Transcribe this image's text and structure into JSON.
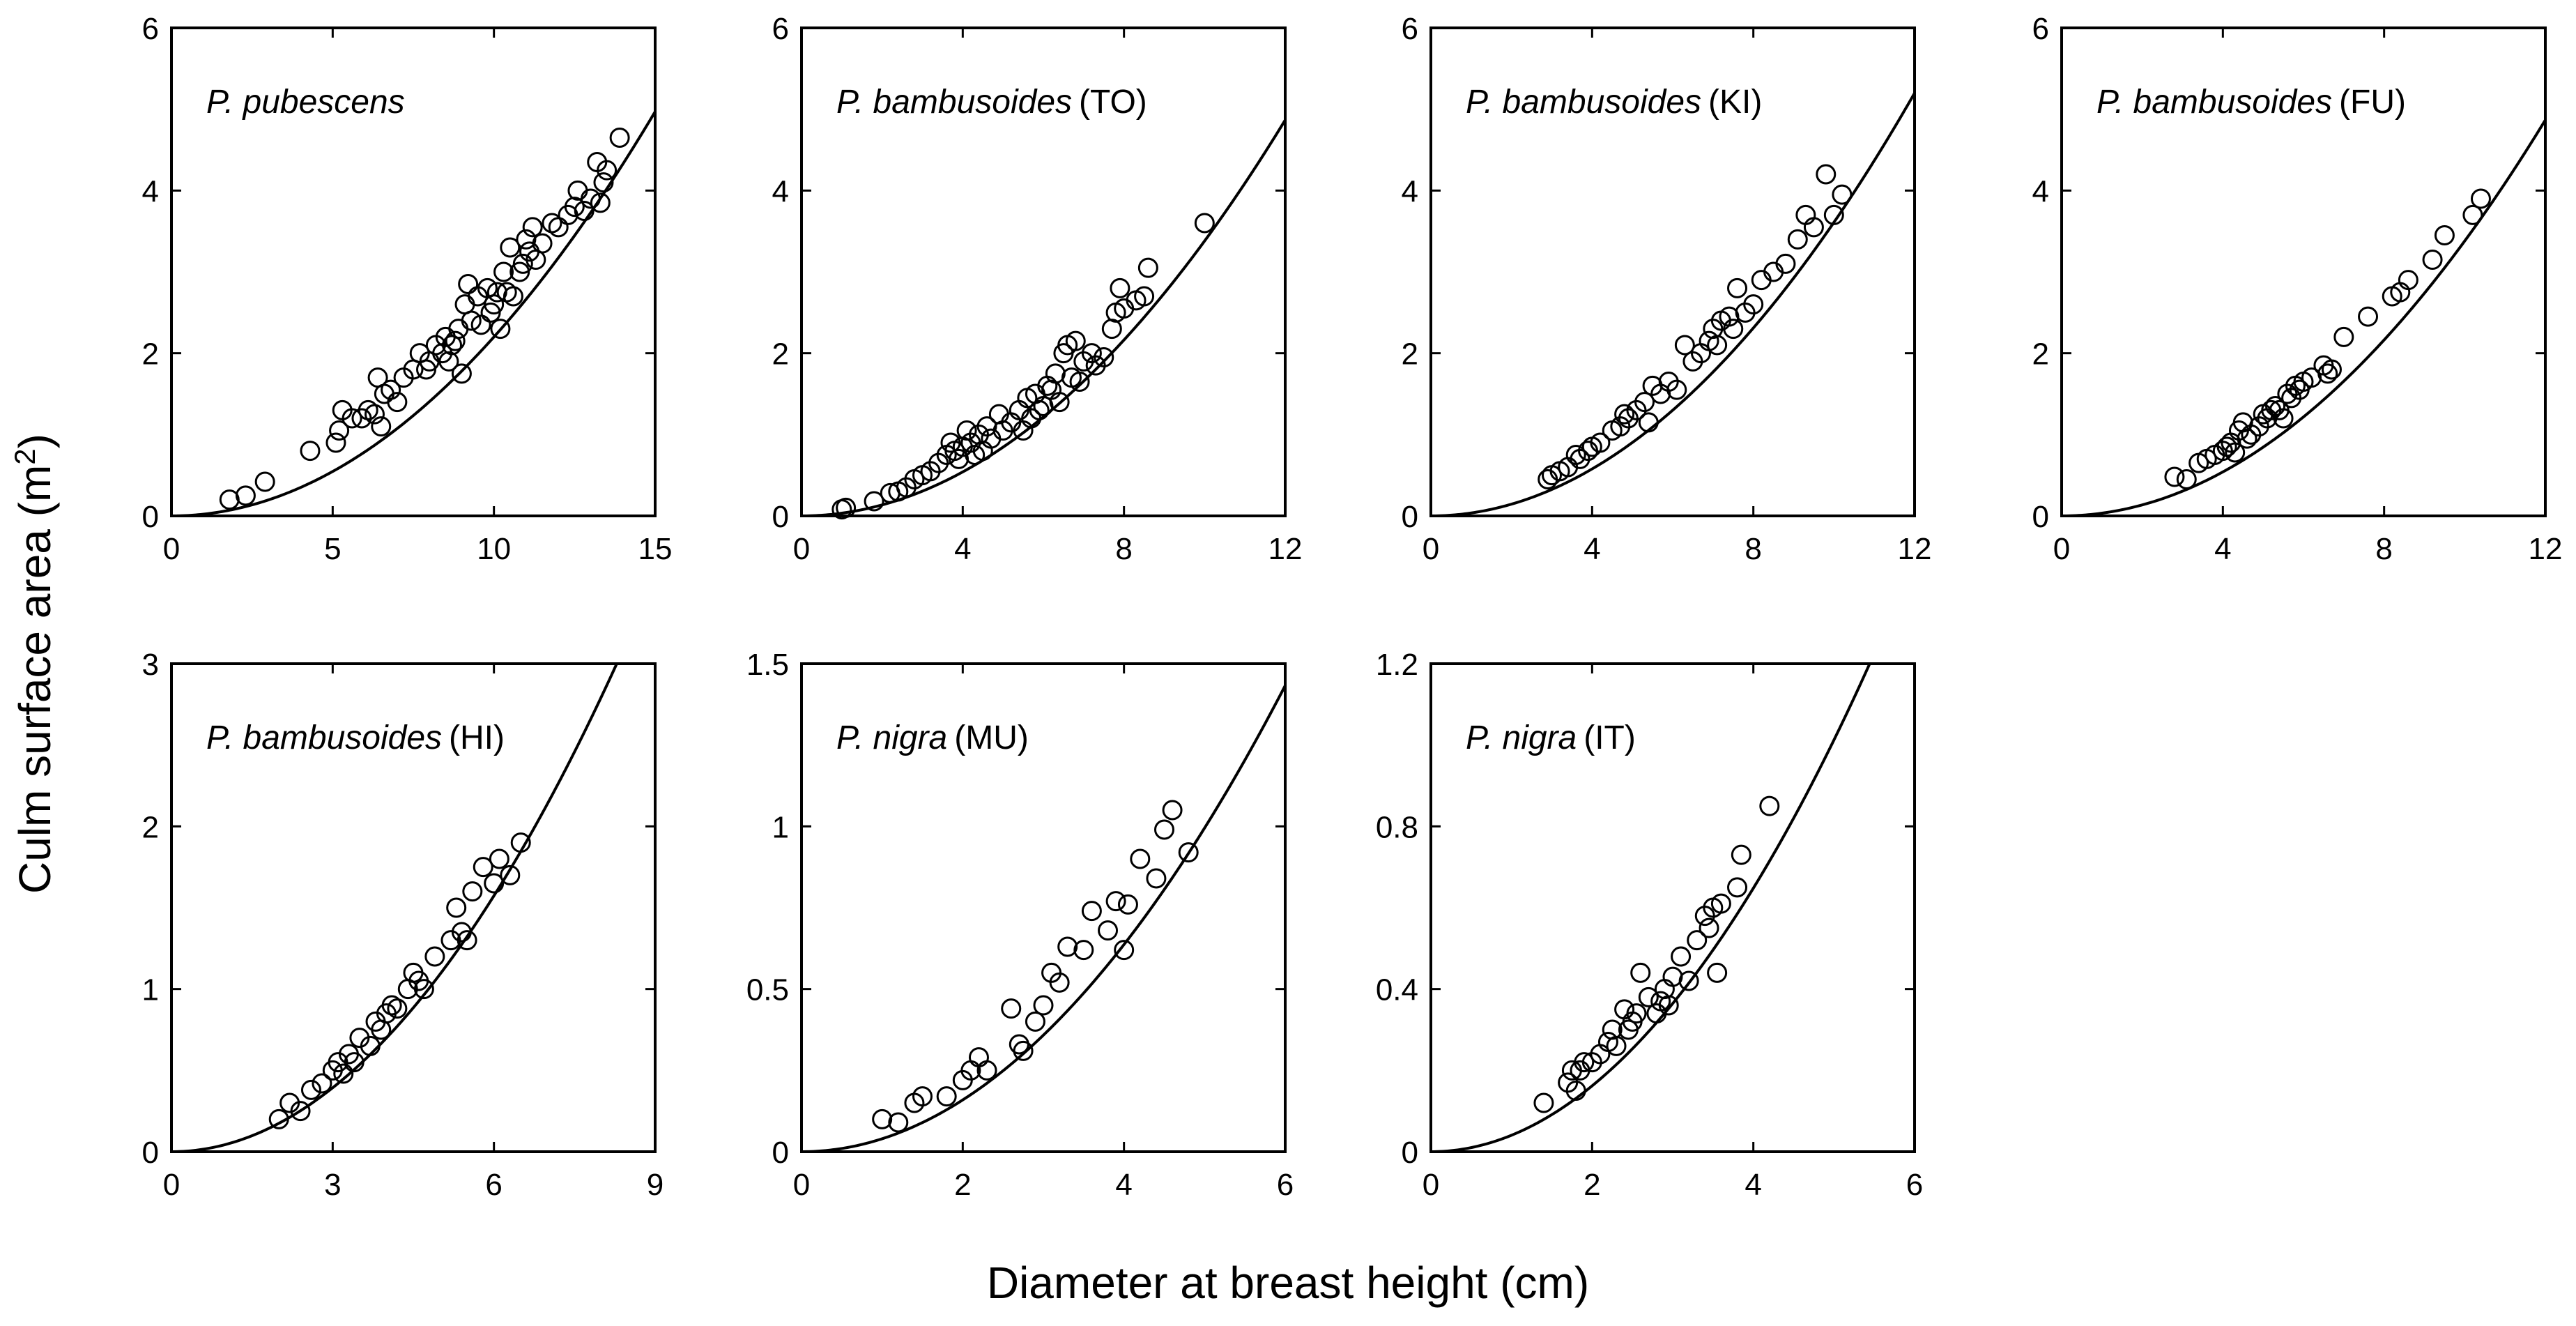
{
  "figure": {
    "ylabel": "Culm surface area (m",
    "ylabel_sup": "2",
    "ylabel_end": ")",
    "xlabel": "Diameter at breast height (cm)"
  },
  "chart_data": [
    {
      "type": "scatter",
      "title_italic": "P. pubescens",
      "title_site": "",
      "xlim": [
        0,
        15
      ],
      "ylim": [
        0,
        6
      ],
      "xticks": [
        0,
        5,
        10,
        15
      ],
      "yticks": [
        0,
        2,
        4,
        6
      ],
      "xticklabels": [
        "0",
        "5",
        "10",
        "15"
      ],
      "yticklabels": [
        "0",
        "2",
        "4",
        "6"
      ],
      "fit": {
        "a": 0.0215,
        "b": 2.01
      },
      "points": [
        [
          1.8,
          0.2
        ],
        [
          2.3,
          0.25
        ],
        [
          2.9,
          0.42
        ],
        [
          4.3,
          0.8
        ],
        [
          5.1,
          0.9
        ],
        [
          5.2,
          1.05
        ],
        [
          5.3,
          1.3
        ],
        [
          5.6,
          1.2
        ],
        [
          5.9,
          1.2
        ],
        [
          6.1,
          1.3
        ],
        [
          6.3,
          1.25
        ],
        [
          6.4,
          1.7
        ],
        [
          6.5,
          1.1
        ],
        [
          6.6,
          1.5
        ],
        [
          6.8,
          1.55
        ],
        [
          7.0,
          1.4
        ],
        [
          7.2,
          1.7
        ],
        [
          7.5,
          1.8
        ],
        [
          7.7,
          2.0
        ],
        [
          7.9,
          1.8
        ],
        [
          8.0,
          1.9
        ],
        [
          8.2,
          2.1
        ],
        [
          8.4,
          2.0
        ],
        [
          8.5,
          2.2
        ],
        [
          8.6,
          1.9
        ],
        [
          8.7,
          2.1
        ],
        [
          8.8,
          2.15
        ],
        [
          8.9,
          2.3
        ],
        [
          9.0,
          1.75
        ],
        [
          9.1,
          2.6
        ],
        [
          9.2,
          2.85
        ],
        [
          9.3,
          2.4
        ],
        [
          9.5,
          2.7
        ],
        [
          9.6,
          2.35
        ],
        [
          9.8,
          2.8
        ],
        [
          9.9,
          2.5
        ],
        [
          10.0,
          2.6
        ],
        [
          10.1,
          2.75
        ],
        [
          10.2,
          2.3
        ],
        [
          10.3,
          3.0
        ],
        [
          10.4,
          2.75
        ],
        [
          10.5,
          3.3
        ],
        [
          10.6,
          2.7
        ],
        [
          10.8,
          3.0
        ],
        [
          10.9,
          3.1
        ],
        [
          11.0,
          3.4
        ],
        [
          11.1,
          3.25
        ],
        [
          11.2,
          3.55
        ],
        [
          11.3,
          3.15
        ],
        [
          11.5,
          3.35
        ],
        [
          11.8,
          3.6
        ],
        [
          12.0,
          3.55
        ],
        [
          12.3,
          3.7
        ],
        [
          12.5,
          3.8
        ],
        [
          12.6,
          4.0
        ],
        [
          12.8,
          3.75
        ],
        [
          13.0,
          3.9
        ],
        [
          13.2,
          4.35
        ],
        [
          13.3,
          3.85
        ],
        [
          13.4,
          4.1
        ],
        [
          13.5,
          4.25
        ],
        [
          13.9,
          4.65
        ]
      ]
    },
    {
      "type": "scatter",
      "title_italic": "P. bambusoides",
      "title_site": "(TO)",
      "xlim": [
        0,
        12
      ],
      "ylim": [
        0,
        6
      ],
      "xticks": [
        0,
        4,
        8,
        12
      ],
      "yticks": [
        0,
        2,
        4,
        6
      ],
      "xticklabels": [
        "0",
        "4",
        "8",
        "12"
      ],
      "yticklabels": [
        "0",
        "2",
        "4",
        "6"
      ],
      "fit": {
        "a": 0.0338,
        "b": 2.0
      },
      "points": [
        [
          1.0,
          0.08
        ],
        [
          1.1,
          0.1
        ],
        [
          1.8,
          0.18
        ],
        [
          2.2,
          0.28
        ],
        [
          2.4,
          0.3
        ],
        [
          2.6,
          0.35
        ],
        [
          2.8,
          0.45
        ],
        [
          3.0,
          0.5
        ],
        [
          3.2,
          0.55
        ],
        [
          3.4,
          0.65
        ],
        [
          3.6,
          0.75
        ],
        [
          3.7,
          0.9
        ],
        [
          3.8,
          0.8
        ],
        [
          3.9,
          0.7
        ],
        [
          4.0,
          0.85
        ],
        [
          4.1,
          1.05
        ],
        [
          4.2,
          0.9
        ],
        [
          4.3,
          0.75
        ],
        [
          4.4,
          1.0
        ],
        [
          4.5,
          0.8
        ],
        [
          4.6,
          1.1
        ],
        [
          4.7,
          0.95
        ],
        [
          4.9,
          1.25
        ],
        [
          5.0,
          1.05
        ],
        [
          5.2,
          1.15
        ],
        [
          5.4,
          1.3
        ],
        [
          5.5,
          1.05
        ],
        [
          5.6,
          1.45
        ],
        [
          5.7,
          1.2
        ],
        [
          5.8,
          1.5
        ],
        [
          5.9,
          1.3
        ],
        [
          6.0,
          1.35
        ],
        [
          6.1,
          1.6
        ],
        [
          6.2,
          1.55
        ],
        [
          6.3,
          1.75
        ],
        [
          6.4,
          1.4
        ],
        [
          6.5,
          2.0
        ],
        [
          6.6,
          2.1
        ],
        [
          6.7,
          1.7
        ],
        [
          6.8,
          2.15
        ],
        [
          6.9,
          1.65
        ],
        [
          7.0,
          1.9
        ],
        [
          7.2,
          2.0
        ],
        [
          7.3,
          1.85
        ],
        [
          7.5,
          1.95
        ],
        [
          7.7,
          2.3
        ],
        [
          7.8,
          2.5
        ],
        [
          7.9,
          2.8
        ],
        [
          8.0,
          2.55
        ],
        [
          8.3,
          2.65
        ],
        [
          8.5,
          2.7
        ],
        [
          8.6,
          3.05
        ],
        [
          10.0,
          3.6
        ]
      ]
    },
    {
      "type": "scatter",
      "title_italic": "P. bambusoides",
      "title_site": "(KI)",
      "xlim": [
        0,
        12
      ],
      "ylim": [
        0,
        6
      ],
      "xticks": [
        0,
        4,
        8,
        12
      ],
      "yticks": [
        0,
        2,
        4,
        6
      ],
      "xticklabels": [
        "0",
        "4",
        "8",
        "12"
      ],
      "yticklabels": [
        "0",
        "2",
        "4",
        "6"
      ],
      "fit": {
        "a": 0.0361,
        "b": 2.0
      },
      "points": [
        [
          2.9,
          0.45
        ],
        [
          3.0,
          0.5
        ],
        [
          3.2,
          0.55
        ],
        [
          3.4,
          0.6
        ],
        [
          3.6,
          0.75
        ],
        [
          3.7,
          0.7
        ],
        [
          3.9,
          0.8
        ],
        [
          4.0,
          0.85
        ],
        [
          4.2,
          0.9
        ],
        [
          4.5,
          1.05
        ],
        [
          4.7,
          1.1
        ],
        [
          4.8,
          1.25
        ],
        [
          4.9,
          1.2
        ],
        [
          5.1,
          1.3
        ],
        [
          5.3,
          1.4
        ],
        [
          5.4,
          1.15
        ],
        [
          5.5,
          1.6
        ],
        [
          5.7,
          1.5
        ],
        [
          5.9,
          1.65
        ],
        [
          6.1,
          1.55
        ],
        [
          6.3,
          2.1
        ],
        [
          6.5,
          1.9
        ],
        [
          6.7,
          2.0
        ],
        [
          6.9,
          2.15
        ],
        [
          7.0,
          2.3
        ],
        [
          7.1,
          2.1
        ],
        [
          7.2,
          2.4
        ],
        [
          7.4,
          2.45
        ],
        [
          7.5,
          2.3
        ],
        [
          7.6,
          2.8
        ],
        [
          7.8,
          2.5
        ],
        [
          8.0,
          2.6
        ],
        [
          8.2,
          2.9
        ],
        [
          8.5,
          3.0
        ],
        [
          8.8,
          3.1
        ],
        [
          9.1,
          3.4
        ],
        [
          9.3,
          3.7
        ],
        [
          9.5,
          3.55
        ],
        [
          9.8,
          4.2
        ],
        [
          10.0,
          3.7
        ],
        [
          10.2,
          3.95
        ]
      ]
    },
    {
      "type": "scatter",
      "title_italic": "P. bambusoides",
      "title_site": "(FU)",
      "xlim": [
        0,
        12
      ],
      "ylim": [
        0,
        6
      ],
      "xticks": [
        0,
        4,
        8,
        12
      ],
      "yticks": [
        0,
        2,
        4,
        6
      ],
      "xticklabels": [
        "0",
        "4",
        "8",
        "12"
      ],
      "yticklabels": [
        "0",
        "2",
        "4",
        "6"
      ],
      "fit": {
        "a": 0.0338,
        "b": 2.0
      },
      "points": [
        [
          2.8,
          0.48
        ],
        [
          3.1,
          0.45
        ],
        [
          3.4,
          0.65
        ],
        [
          3.6,
          0.7
        ],
        [
          3.8,
          0.75
        ],
        [
          4.0,
          0.8
        ],
        [
          4.1,
          0.85
        ],
        [
          4.2,
          0.9
        ],
        [
          4.3,
          0.78
        ],
        [
          4.4,
          1.05
        ],
        [
          4.5,
          1.15
        ],
        [
          4.6,
          0.95
        ],
        [
          4.7,
          1.0
        ],
        [
          4.9,
          1.1
        ],
        [
          5.0,
          1.25
        ],
        [
          5.1,
          1.2
        ],
        [
          5.2,
          1.3
        ],
        [
          5.3,
          1.35
        ],
        [
          5.4,
          1.3
        ],
        [
          5.5,
          1.2
        ],
        [
          5.6,
          1.5
        ],
        [
          5.7,
          1.45
        ],
        [
          5.8,
          1.6
        ],
        [
          5.9,
          1.55
        ],
        [
          6.0,
          1.65
        ],
        [
          6.2,
          1.7
        ],
        [
          6.5,
          1.85
        ],
        [
          6.6,
          1.75
        ],
        [
          6.7,
          1.8
        ],
        [
          7.0,
          2.2
        ],
        [
          7.6,
          2.45
        ],
        [
          8.2,
          2.7
        ],
        [
          8.4,
          2.75
        ],
        [
          8.6,
          2.9
        ],
        [
          9.2,
          3.15
        ],
        [
          9.5,
          3.45
        ],
        [
          10.2,
          3.7
        ],
        [
          10.4,
          3.9
        ]
      ]
    },
    {
      "type": "scatter",
      "title_italic": "P. bambusoides",
      "title_site": "(HI)",
      "xlim": [
        0,
        9
      ],
      "ylim": [
        0,
        3
      ],
      "xticks": [
        0,
        3,
        6,
        9
      ],
      "yticks": [
        0,
        1,
        2,
        3
      ],
      "xticklabels": [
        "0",
        "3",
        "6",
        "9"
      ],
      "yticklabels": [
        "0",
        "1",
        "2",
        "3"
      ],
      "fit": {
        "a": 0.0437,
        "b": 2.0
      },
      "points": [
        [
          2.0,
          0.2
        ],
        [
          2.2,
          0.3
        ],
        [
          2.4,
          0.25
        ],
        [
          2.6,
          0.38
        ],
        [
          2.8,
          0.42
        ],
        [
          3.0,
          0.5
        ],
        [
          3.1,
          0.55
        ],
        [
          3.2,
          0.48
        ],
        [
          3.3,
          0.6
        ],
        [
          3.4,
          0.55
        ],
        [
          3.5,
          0.7
        ],
        [
          3.7,
          0.65
        ],
        [
          3.8,
          0.8
        ],
        [
          3.9,
          0.75
        ],
        [
          4.0,
          0.85
        ],
        [
          4.1,
          0.9
        ],
        [
          4.2,
          0.88
        ],
        [
          4.4,
          1.0
        ],
        [
          4.5,
          1.1
        ],
        [
          4.6,
          1.05
        ],
        [
          4.7,
          1.0
        ],
        [
          4.9,
          1.2
        ],
        [
          5.2,
          1.3
        ],
        [
          5.3,
          1.5
        ],
        [
          5.4,
          1.35
        ],
        [
          5.5,
          1.3
        ],
        [
          5.6,
          1.6
        ],
        [
          5.8,
          1.75
        ],
        [
          6.0,
          1.65
        ],
        [
          6.1,
          1.8
        ],
        [
          6.3,
          1.7
        ],
        [
          6.5,
          1.9
        ]
      ]
    },
    {
      "type": "scatter",
      "title_italic": "P. nigra",
      "title_site": "(MU)",
      "xlim": [
        0,
        6
      ],
      "ylim": [
        0,
        1.5
      ],
      "xticks": [
        0,
        2,
        4,
        6
      ],
      "yticks": [
        0,
        0.5,
        1,
        1.5
      ],
      "xticklabels": [
        "0",
        "2",
        "4",
        "6"
      ],
      "yticklabels": [
        "0",
        "0.5",
        "1",
        "1.5"
      ],
      "fit": {
        "a": 0.0398,
        "b": 2.0
      },
      "points": [
        [
          1.0,
          0.1
        ],
        [
          1.2,
          0.09
        ],
        [
          1.4,
          0.15
        ],
        [
          1.5,
          0.17
        ],
        [
          1.8,
          0.17
        ],
        [
          2.0,
          0.22
        ],
        [
          2.1,
          0.25
        ],
        [
          2.2,
          0.29
        ],
        [
          2.3,
          0.25
        ],
        [
          2.6,
          0.44
        ],
        [
          2.7,
          0.33
        ],
        [
          2.75,
          0.31
        ],
        [
          2.9,
          0.4
        ],
        [
          3.0,
          0.45
        ],
        [
          3.1,
          0.55
        ],
        [
          3.2,
          0.52
        ],
        [
          3.3,
          0.63
        ],
        [
          3.5,
          0.62
        ],
        [
          3.6,
          0.74
        ],
        [
          3.8,
          0.68
        ],
        [
          3.9,
          0.77
        ],
        [
          4.0,
          0.62
        ],
        [
          4.05,
          0.76
        ],
        [
          4.2,
          0.9
        ],
        [
          4.4,
          0.84
        ],
        [
          4.5,
          0.99
        ],
        [
          4.6,
          1.05
        ],
        [
          4.8,
          0.92
        ]
      ]
    },
    {
      "type": "scatter",
      "title_italic": "P. nigra",
      "title_site": "(IT)",
      "xlim": [
        0,
        6
      ],
      "ylim": [
        0,
        1.2
      ],
      "xticks": [
        0,
        2,
        4,
        6
      ],
      "yticks": [
        0,
        0.4,
        0.8,
        1.2
      ],
      "xticklabels": [
        "0",
        "2",
        "4",
        "6"
      ],
      "yticklabels": [
        "0",
        "0.4",
        "0.8",
        "1.2"
      ],
      "fit": {
        "a": 0.0405,
        "b": 2.0
      },
      "points": [
        [
          1.4,
          0.12
        ],
        [
          1.7,
          0.17
        ],
        [
          1.75,
          0.2
        ],
        [
          1.8,
          0.15
        ],
        [
          1.85,
          0.2
        ],
        [
          1.9,
          0.22
        ],
        [
          2.0,
          0.22
        ],
        [
          2.1,
          0.24
        ],
        [
          2.2,
          0.27
        ],
        [
          2.25,
          0.3
        ],
        [
          2.3,
          0.26
        ],
        [
          2.4,
          0.35
        ],
        [
          2.45,
          0.3
        ],
        [
          2.5,
          0.32
        ],
        [
          2.55,
          0.34
        ],
        [
          2.6,
          0.44
        ],
        [
          2.7,
          0.38
        ],
        [
          2.8,
          0.34
        ],
        [
          2.85,
          0.37
        ],
        [
          2.9,
          0.4
        ],
        [
          2.95,
          0.36
        ],
        [
          3.0,
          0.43
        ],
        [
          3.1,
          0.48
        ],
        [
          3.2,
          0.42
        ],
        [
          3.3,
          0.52
        ],
        [
          3.4,
          0.58
        ],
        [
          3.45,
          0.55
        ],
        [
          3.5,
          0.6
        ],
        [
          3.55,
          0.44
        ],
        [
          3.6,
          0.61
        ],
        [
          3.8,
          0.65
        ],
        [
          3.85,
          0.73
        ],
        [
          4.2,
          0.85
        ]
      ]
    }
  ]
}
